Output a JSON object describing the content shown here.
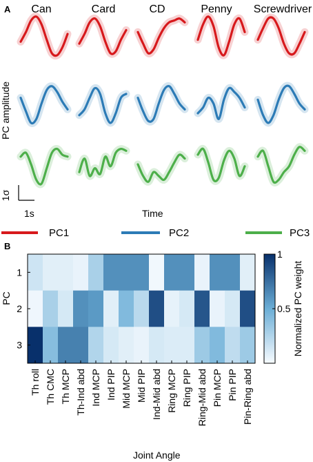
{
  "panel_a": {
    "letter": "A",
    "objects": [
      "Can",
      "Card",
      "CD",
      "Penny",
      "Screwdriver"
    ],
    "ylabel": "PC amplitude",
    "xlabel": "Time",
    "scale_y": "1σ",
    "scale_x": "1s",
    "legend": [
      "PC1",
      "PC2",
      "PC3"
    ],
    "colors": {
      "PC1": "#d7191c",
      "PC2": "#2c7bb6",
      "PC3": "#4daf4a"
    }
  },
  "panel_b": {
    "letter": "B",
    "ylabel": "PC",
    "xlabel": "Joint Angle",
    "colorbar_label": "Normalized PC weight",
    "colorbar_ticks": [
      "1",
      "0.5"
    ]
  },
  "chart_data": [
    {
      "type": "line",
      "panel": "A",
      "xlabel": "Time",
      "ylabel": "PC amplitude",
      "objects": [
        "Can",
        "Card",
        "CD",
        "Penny",
        "Screwdriver"
      ],
      "series": [
        {
          "name": "PC1",
          "values": {
            "Can": [
              -0.3,
              0.2,
              0.8,
              1.0,
              0.6,
              -0.2,
              -0.9,
              -1.0,
              -0.6,
              0.1
            ],
            "Card": [
              -0.4,
              0.1,
              0.7,
              0.9,
              0.5,
              -0.3,
              -0.9,
              -0.8,
              -0.2,
              0.3
            ],
            "CD": [
              0.2,
              -0.4,
              -0.9,
              -0.7,
              -0.1,
              0.4,
              0.7,
              0.8,
              0.9,
              0.7
            ],
            "Penny": [
              -0.2,
              0.6,
              1.0,
              0.5,
              -0.6,
              -1.0,
              -0.3,
              0.6,
              0.9,
              0.2
            ],
            "Screwdriver": [
              -0.2,
              0.4,
              0.9,
              0.9,
              0.4,
              -0.4,
              -0.9,
              -0.9,
              -0.4,
              0.2
            ]
          }
        },
        {
          "name": "PC2",
          "values": {
            "Can": [
              0.3,
              -0.4,
              -1.0,
              -0.8,
              0.0,
              0.7,
              0.9,
              0.6,
              0.1,
              -0.3
            ],
            "Card": [
              -0.6,
              -0.3,
              0.3,
              0.8,
              0.5,
              -0.5,
              -1.0,
              -0.5,
              0.3,
              0.5
            ],
            "CD": [
              0.3,
              -0.4,
              -0.9,
              -0.8,
              0.0,
              0.7,
              0.9,
              0.5,
              0.0,
              -0.3
            ],
            "Penny": [
              -0.5,
              -0.2,
              0.3,
              0.0,
              -0.8,
              0.2,
              0.8,
              0.6,
              0.3,
              -0.2
            ],
            "Screwdriver": [
              0.2,
              -0.6,
              -1.0,
              -0.6,
              0.2,
              0.8,
              0.9,
              0.5,
              0.0,
              -0.3
            ]
          }
        },
        {
          "name": "PC3",
          "values": {
            "Can": [
              0.4,
              0.6,
              0.0,
              -0.8,
              -1.0,
              -0.2,
              0.6,
              0.8,
              0.5,
              0.4
            ],
            "Card": [
              -0.4,
              0.3,
              -0.6,
              -0.2,
              -0.5,
              0.4,
              -0.1,
              0.6,
              0.8,
              0.7
            ],
            "CD": [
              0.0,
              -0.6,
              -0.9,
              -0.4,
              -0.6,
              -0.8,
              -0.4,
              0.1,
              0.5,
              0.3
            ],
            "Penny": [
              0.5,
              0.8,
              0.1,
              -0.8,
              -0.7,
              0.2,
              0.7,
              0.3,
              -0.6,
              -0.1
            ],
            "Screwdriver": [
              0.4,
              0.7,
              -0.1,
              -0.9,
              -0.8,
              -0.4,
              -0.1,
              0.5,
              0.9,
              0.7
            ]
          }
        }
      ]
    },
    {
      "type": "heatmap",
      "panel": "B",
      "xlabel": "Joint Angle",
      "ylabel": "PC",
      "rows": [
        "1",
        "2",
        "3"
      ],
      "columns": [
        "Th roll",
        "Th CMC",
        "Th MCP",
        "Th-Ind abd",
        "Ind MCP",
        "Ind PIP",
        "Mid MCP",
        "Mid PIP",
        "Ind-Mid abd",
        "Ring MCP",
        "Ring PIP",
        "Ring-Mid abd",
        "Pin MCP",
        "Pin PIP",
        "Pin-Ring abd"
      ],
      "values": [
        [
          0.15,
          0.08,
          0.08,
          0.05,
          0.28,
          0.62,
          0.62,
          0.62,
          0.02,
          0.62,
          0.62,
          0.05,
          0.62,
          0.62,
          0.08
        ],
        [
          0.03,
          0.28,
          0.12,
          0.62,
          0.58,
          0.08,
          0.42,
          0.22,
          0.88,
          0.06,
          0.12,
          0.85,
          0.05,
          0.12,
          0.88
        ],
        [
          1.0,
          0.4,
          0.68,
          0.68,
          0.25,
          0.12,
          0.08,
          0.05,
          0.12,
          0.1,
          0.1,
          0.32,
          0.42,
          0.2,
          0.32
        ]
      ],
      "colorbar": {
        "min": 0,
        "max": 1,
        "ticks": [
          1,
          0.5
        ],
        "label": "Normalized PC weight"
      }
    }
  ]
}
